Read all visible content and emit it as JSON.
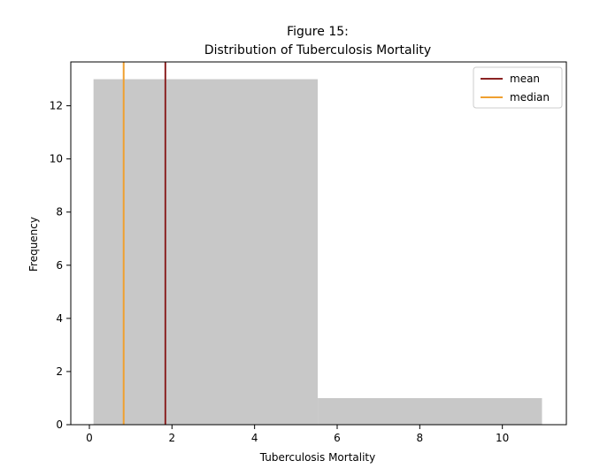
{
  "chart_data": {
    "type": "histogram",
    "title_line1": "Figure 15:",
    "title_line2": "Distribution of Tuberculosis Mortality",
    "xlabel": "Tuberculosis Mortality",
    "ylabel": "Frequency",
    "xlim": [
      -0.45,
      11.55
    ],
    "ylim": [
      0,
      13.65
    ],
    "x_ticks": [
      0,
      2,
      4,
      6,
      8,
      10
    ],
    "y_ticks": [
      0,
      2,
      4,
      6,
      8,
      10,
      12
    ],
    "bins": [
      {
        "start": 0.1,
        "end": 5.53,
        "count": 13
      },
      {
        "start": 5.53,
        "end": 10.96,
        "count": 1
      }
    ],
    "bar_color": "#c8c8c8",
    "reference_lines": [
      {
        "name": "mean",
        "value": 1.84,
        "color": "#8b2323"
      },
      {
        "name": "median",
        "value": 0.83,
        "color": "#f0a030"
      }
    ],
    "legend_position": "upper right",
    "grid": false
  }
}
